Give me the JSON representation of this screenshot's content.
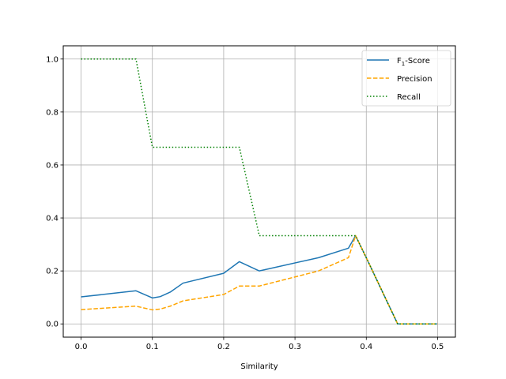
{
  "chart_data": {
    "type": "line",
    "xlabel": "Similarity",
    "ylabel": "",
    "xlim": [
      -0.025,
      0.525
    ],
    "ylim": [
      -0.05,
      1.05
    ],
    "x_ticks": [
      0.0,
      0.1,
      0.2,
      0.3,
      0.4,
      0.5
    ],
    "x_tick_labels": [
      "0.0",
      "0.1",
      "0.2",
      "0.3",
      "0.4",
      "0.5"
    ],
    "y_ticks": [
      0.0,
      0.2,
      0.4,
      0.6,
      0.8,
      1.0
    ],
    "y_tick_labels": [
      "0.0",
      "0.2",
      "0.4",
      "0.6",
      "0.8",
      "1.0"
    ],
    "grid": true,
    "legend_position": "top-right",
    "series": [
      {
        "name": "F1-Score",
        "label_base": "F",
        "label_sub": "1",
        "label_rest": "-Score",
        "color": "#1f77b4",
        "style": "solid",
        "points": [
          [
            0.0,
            0.102
          ],
          [
            0.077,
            0.125
          ],
          [
            0.1,
            0.098
          ],
          [
            0.111,
            0.103
          ],
          [
            0.125,
            0.12
          ],
          [
            0.143,
            0.154
          ],
          [
            0.2,
            0.191
          ],
          [
            0.222,
            0.235
          ],
          [
            0.25,
            0.2
          ],
          [
            0.333,
            0.25
          ],
          [
            0.375,
            0.286
          ],
          [
            0.385,
            0.333
          ],
          [
            0.4,
            0.25
          ],
          [
            0.444,
            0.0
          ],
          [
            0.5,
            0.0
          ]
        ]
      },
      {
        "name": "Precision",
        "color": "#ffa500",
        "style": "dashed",
        "points": [
          [
            0.0,
            0.054
          ],
          [
            0.077,
            0.067
          ],
          [
            0.1,
            0.053
          ],
          [
            0.111,
            0.056
          ],
          [
            0.125,
            0.067
          ],
          [
            0.143,
            0.087
          ],
          [
            0.2,
            0.111
          ],
          [
            0.222,
            0.143
          ],
          [
            0.25,
            0.143
          ],
          [
            0.333,
            0.2
          ],
          [
            0.375,
            0.25
          ],
          [
            0.385,
            0.333
          ],
          [
            0.4,
            0.25
          ],
          [
            0.444,
            0.0
          ],
          [
            0.5,
            0.0
          ]
        ]
      },
      {
        "name": "Recall",
        "color": "#008000",
        "style": "dotted",
        "points": [
          [
            0.0,
            1.0
          ],
          [
            0.077,
            1.0
          ],
          [
            0.1,
            0.667
          ],
          [
            0.222,
            0.667
          ],
          [
            0.25,
            0.333
          ],
          [
            0.385,
            0.333
          ],
          [
            0.4,
            0.25
          ],
          [
            0.444,
            0.0
          ],
          [
            0.5,
            0.0
          ]
        ]
      }
    ]
  }
}
